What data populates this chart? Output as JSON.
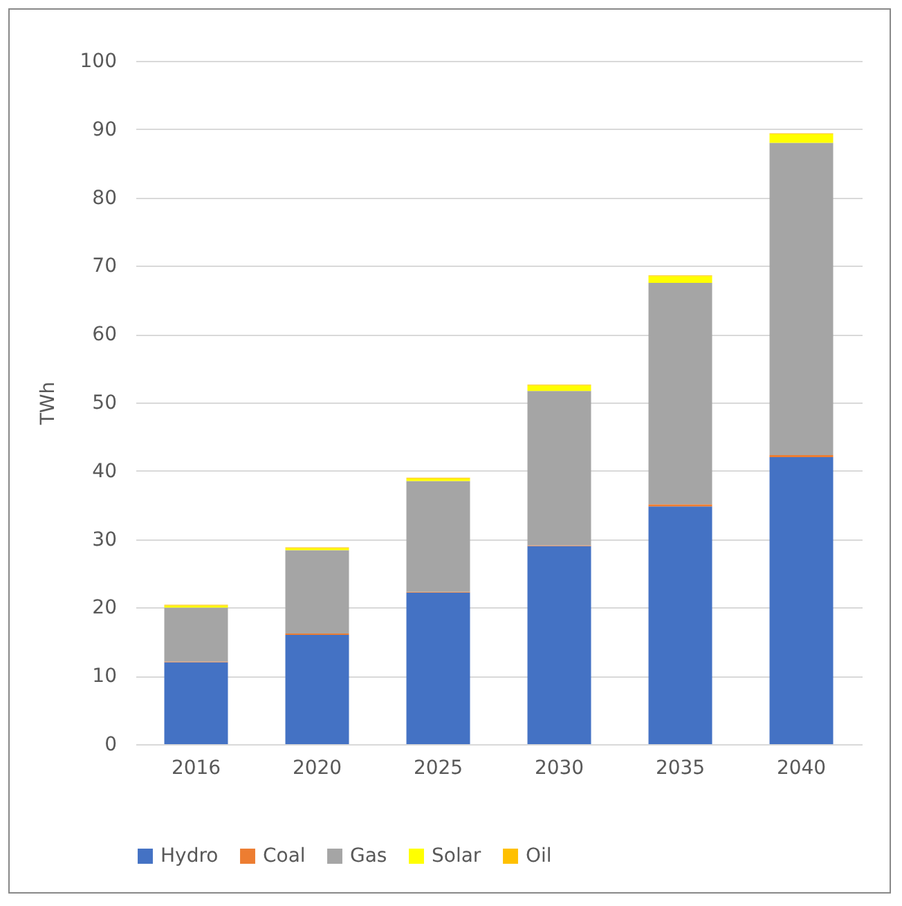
{
  "chart_data": {
    "type": "bar",
    "stacked": true,
    "ylabel": "TWh",
    "categories": [
      "2016",
      "2020",
      "2025",
      "2030",
      "2035",
      "2040"
    ],
    "series": [
      {
        "name": "Hydro",
        "color": "#4472c4",
        "values": [
          12,
          16,
          22.2,
          29,
          34.8,
          42
        ]
      },
      {
        "name": "Coal",
        "color": "#ed7d31",
        "values": [
          0.1,
          0.2,
          0.1,
          0.1,
          0.3,
          0.3
        ]
      },
      {
        "name": "Gas",
        "color": "#a5a5a5",
        "values": [
          7.9,
          12.2,
          16.2,
          22.6,
          32.4,
          45.7
        ]
      },
      {
        "name": "Solar",
        "color": "#ffff00",
        "values": [
          0.3,
          0.3,
          0.4,
          0.8,
          1.0,
          1.3
        ]
      },
      {
        "name": "Oil",
        "color": "#ffc000",
        "values": [
          0.1,
          0.1,
          0.1,
          0.1,
          0.1,
          0.1
        ]
      }
    ],
    "ylim": [
      0,
      100
    ],
    "yticks": [
      0,
      10,
      20,
      30,
      40,
      50,
      60,
      70,
      80,
      90,
      100
    ],
    "grid": "y",
    "legend": "bottom"
  }
}
